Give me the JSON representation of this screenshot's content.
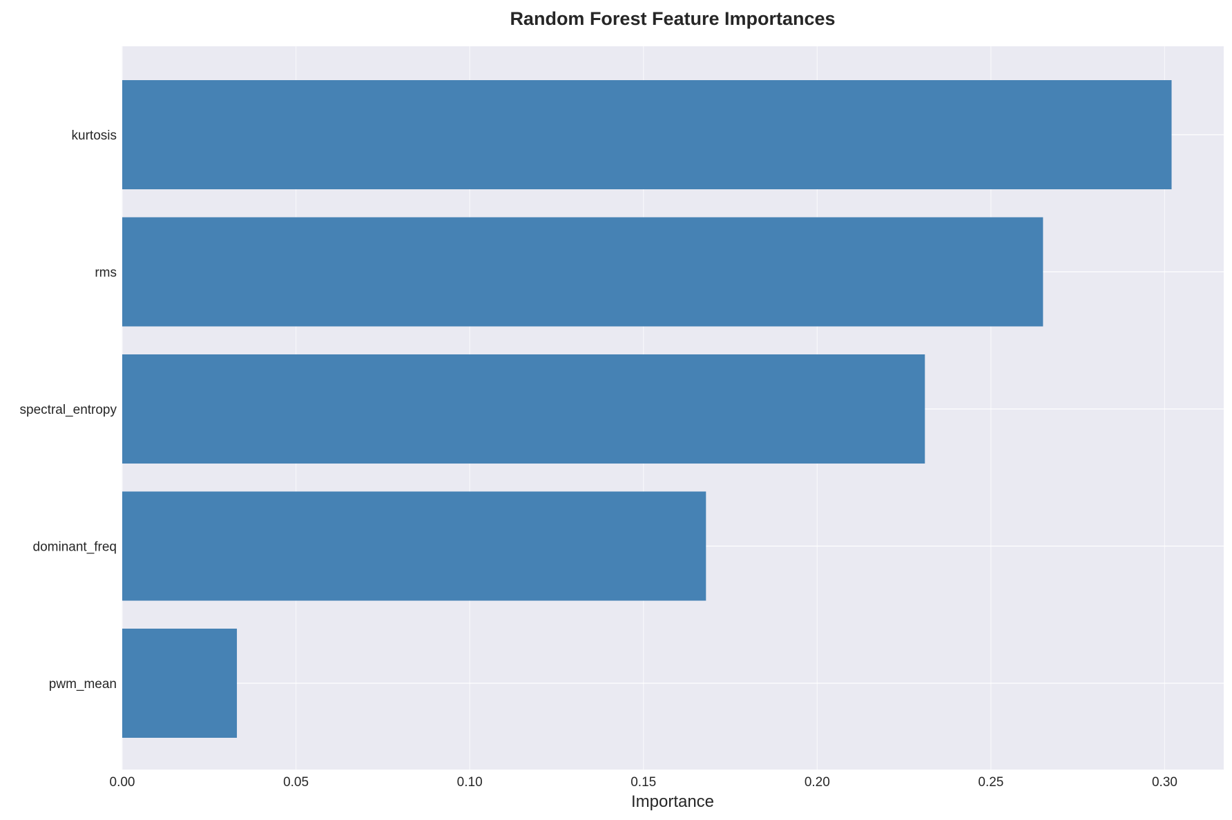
{
  "chart_data": {
    "type": "bar",
    "orientation": "horizontal",
    "title": "Random Forest Feature Importances",
    "xlabel": "Importance",
    "ylabel": "",
    "categories": [
      "kurtosis",
      "rms",
      "spectral_entropy",
      "dominant_freq",
      "pwm_mean"
    ],
    "values": [
      0.302,
      0.265,
      0.231,
      0.168,
      0.033
    ],
    "xlim": [
      0,
      0.317
    ],
    "xticks": [
      0.0,
      0.05,
      0.1,
      0.15,
      0.2,
      0.25,
      0.3
    ],
    "xtick_labels": [
      "0.00",
      "0.05",
      "0.10",
      "0.15",
      "0.20",
      "0.25",
      "0.30"
    ],
    "grid": true,
    "legend": "none",
    "colors": {
      "bar": "#4682b4",
      "plot_background": "#eaeaf2",
      "grid": "#ffffff"
    }
  }
}
